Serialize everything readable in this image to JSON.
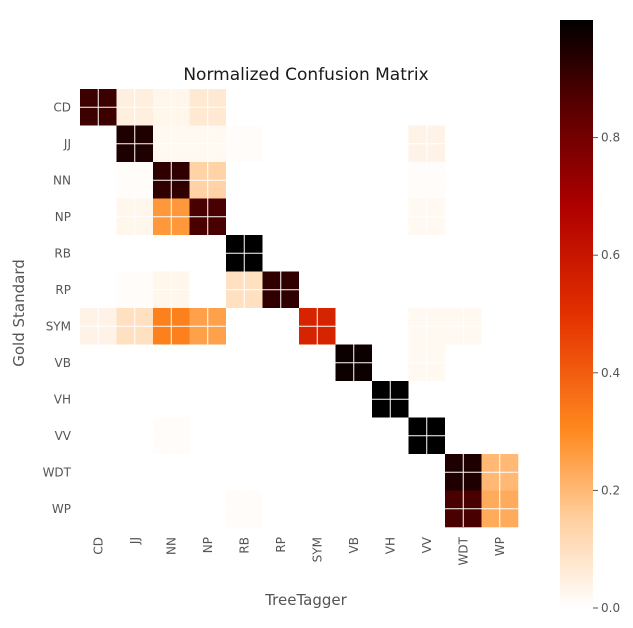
{
  "chart_data": {
    "type": "heatmap",
    "title": "Normalized Confusion Matrix",
    "xlabel": "TreeTagger",
    "ylabel": "Gold Standard",
    "x_labels": [
      "CD",
      "JJ",
      "NN",
      "NP",
      "RB",
      "RP",
      "SYM",
      "VB",
      "VH",
      "VV",
      "WDT",
      "WP"
    ],
    "y_labels": [
      "CD",
      "JJ",
      "NN",
      "NP",
      "RB",
      "RP",
      "SYM",
      "VB",
      "VH",
      "VV",
      "WDT",
      "WP"
    ],
    "colormap": "gist_heat_r",
    "vmin": 0.0,
    "vmax": 1.0,
    "colorbar_ticks": [
      "0.0",
      "0.2",
      "0.4",
      "0.6",
      "0.8"
    ],
    "grid": true,
    "matrix": [
      [
        0.9,
        0.05,
        0.03,
        0.07,
        0,
        0,
        0,
        0,
        0,
        0,
        0,
        0
      ],
      [
        0,
        0.95,
        0.02,
        0.02,
        0.01,
        0,
        0,
        0,
        0,
        0.04,
        0,
        0
      ],
      [
        0,
        0.01,
        0.92,
        0.14,
        0,
        0,
        0,
        0,
        0,
        0.01,
        0,
        0
      ],
      [
        0,
        0.03,
        0.27,
        0.88,
        0,
        0,
        0,
        0,
        0,
        0.02,
        0,
        0
      ],
      [
        0,
        0,
        0,
        0,
        1.0,
        0,
        0,
        0,
        0,
        0,
        0,
        0
      ],
      [
        0,
        0.01,
        0.03,
        0,
        0.1,
        0.92,
        0,
        0,
        0,
        0,
        0,
        0
      ],
      [
        0.04,
        0.1,
        0.32,
        0.25,
        0,
        0,
        0.55,
        0,
        0,
        0.02,
        0.02,
        0
      ],
      [
        0,
        0,
        0,
        0,
        0,
        0,
        0,
        0.98,
        0,
        0.02,
        0,
        0
      ],
      [
        0,
        0,
        0,
        0,
        0,
        0,
        0,
        0,
        1.0,
        0,
        0,
        0
      ],
      [
        0,
        0,
        0.01,
        0,
        0,
        0,
        0,
        0,
        0,
        1.0,
        0,
        0
      ],
      [
        0,
        0,
        0,
        0,
        0,
        0,
        0,
        0,
        0,
        0,
        0.95,
        0.2
      ],
      [
        0,
        0,
        0,
        0,
        0.01,
        0,
        0,
        0,
        0,
        0,
        0.88,
        0.23
      ]
    ]
  }
}
